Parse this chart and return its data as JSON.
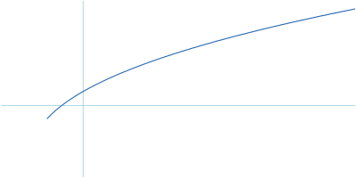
{
  "line_color": "#2b6cb0",
  "bg_color": "#ffffff",
  "grid_color": "#add8e6",
  "line_width": 0.8,
  "n_points": 800,
  "noise_amplitude": 0.00025,
  "noise_amplitude_high": 0.0005,
  "xlim": [
    0.0,
    1.0
  ],
  "ylim": [
    -0.08,
    1.05
  ],
  "hline_y": 0.38,
  "vline_x": 0.23,
  "figsize": [
    4.0,
    2.0
  ],
  "dpi": 100
}
